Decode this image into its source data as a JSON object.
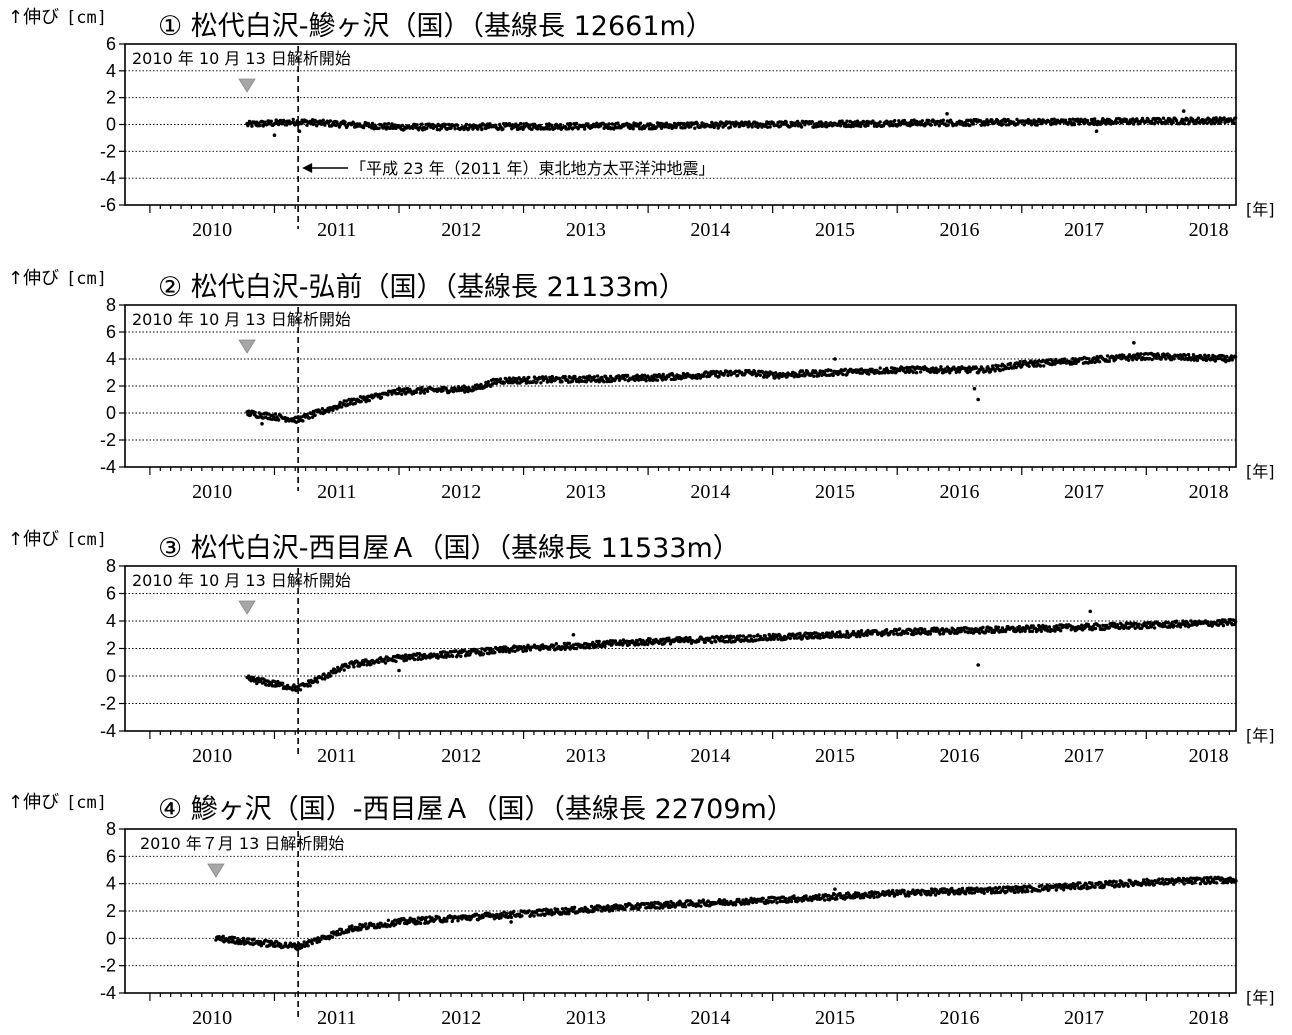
{
  "y_axis_label": "↑伸び",
  "y_axis_unit": "[cm]",
  "x_axis_unit": "[年]",
  "earthquake_note": "「平成 23 年（2011 年）東北地方太平洋沖地震」",
  "colors": {
    "points": "#000000",
    "marker": "#a6a6a6",
    "background": "#ffffff"
  },
  "chart_data": [
    {
      "type": "scatter",
      "title": "① 松代白沢-鰺ヶ沢（国）（基線長 12661m）",
      "start_note": "2010 年 10 月 13 日解析開始",
      "start_marker_x": 2010.78,
      "x_range": [
        2009.8,
        2018.72
      ],
      "ylim": [
        -6,
        6
      ],
      "yticks": [
        -6,
        -4,
        -2,
        0,
        2,
        4,
        6
      ],
      "xticks": [
        "2010",
        "2011",
        "2012",
        "2013",
        "2014",
        "2015",
        "2016",
        "2017",
        "2018"
      ],
      "gridlines": [
        -4,
        -2,
        0,
        2,
        4
      ],
      "earthquake_x": 2011.19,
      "series_start": 2010.78,
      "trend": [
        [
          2010.78,
          0.0
        ],
        [
          2011.19,
          0.2
        ],
        [
          2012.0,
          -0.2
        ],
        [
          2014.0,
          -0.1
        ],
        [
          2016.0,
          0.1
        ],
        [
          2018.72,
          0.3
        ]
      ],
      "outliers": [
        [
          2011.0,
          -0.8
        ],
        [
          2011.2,
          -0.5
        ],
        [
          2016.4,
          0.8
        ],
        [
          2017.6,
          -0.5
        ],
        [
          2018.3,
          1.0
        ]
      ]
    },
    {
      "type": "scatter",
      "title": "② 松代白沢-弘前（国）（基線長 21133m）",
      "start_note": "2010 年 10 月 13 日解析開始",
      "start_marker_x": 2010.78,
      "x_range": [
        2009.8,
        2018.72
      ],
      "ylim": [
        -4,
        8
      ],
      "yticks": [
        -4,
        -2,
        0,
        2,
        4,
        6,
        8
      ],
      "xticks": [
        "2010",
        "2011",
        "2012",
        "2013",
        "2014",
        "2015",
        "2016",
        "2017",
        "2018"
      ],
      "gridlines": [
        -2,
        0,
        2,
        4,
        6
      ],
      "earthquake_x": 2011.19,
      "series_start": 2010.78,
      "trend": [
        [
          2010.78,
          0.0
        ],
        [
          2011.19,
          -0.5
        ],
        [
          2011.6,
          0.8
        ],
        [
          2012.0,
          1.6
        ],
        [
          2012.6,
          1.8
        ],
        [
          2012.8,
          2.4
        ],
        [
          2014.0,
          2.6
        ],
        [
          2014.8,
          3.0
        ],
        [
          2015.0,
          2.8
        ],
        [
          2016.0,
          3.2
        ],
        [
          2016.7,
          3.2
        ],
        [
          2017.0,
          3.6
        ],
        [
          2018.0,
          4.2
        ],
        [
          2018.72,
          4.0
        ]
      ],
      "outliers": [
        [
          2016.65,
          1.0
        ],
        [
          2016.62,
          1.8
        ],
        [
          2010.9,
          -0.8
        ],
        [
          2017.9,
          5.2
        ],
        [
          2015.5,
          4.0
        ]
      ]
    },
    {
      "type": "scatter",
      "title": "③ 松代白沢-西目屋Ａ（国）（基線長 11533m）",
      "start_note": "2010 年 10 月 13 日解析開始",
      "start_marker_x": 2010.78,
      "x_range": [
        2009.8,
        2018.72
      ],
      "ylim": [
        -4,
        8
      ],
      "yticks": [
        -4,
        -2,
        0,
        2,
        4,
        6,
        8
      ],
      "xticks": [
        "2010",
        "2011",
        "2012",
        "2013",
        "2014",
        "2015",
        "2016",
        "2017",
        "2018"
      ],
      "gridlines": [
        -2,
        0,
        2,
        4,
        6
      ],
      "earthquake_x": 2011.19,
      "series_start": 2010.78,
      "trend": [
        [
          2010.78,
          -0.2
        ],
        [
          2011.19,
          -0.9
        ],
        [
          2011.6,
          0.8
        ],
        [
          2012.0,
          1.3
        ],
        [
          2013.0,
          2.0
        ],
        [
          2014.0,
          2.5
        ],
        [
          2015.0,
          2.8
        ],
        [
          2016.0,
          3.2
        ],
        [
          2017.0,
          3.4
        ],
        [
          2018.72,
          3.9
        ]
      ],
      "outliers": [
        [
          2016.65,
          0.8
        ],
        [
          2012.0,
          0.4
        ],
        [
          2017.55,
          4.7
        ],
        [
          2013.4,
          3.0
        ]
      ]
    },
    {
      "type": "scatter",
      "title": "④ 鰺ヶ沢（国）-西目屋Ａ（国）（基線長 22709m）",
      "start_note": "2010 年７月 13 日解析開始",
      "start_marker_x": 2010.53,
      "x_range": [
        2009.8,
        2018.72
      ],
      "ylim": [
        -4,
        8
      ],
      "yticks": [
        -4,
        -2,
        0,
        2,
        4,
        6,
        8
      ],
      "xticks": [
        "2010",
        "2011",
        "2012",
        "2013",
        "2014",
        "2015",
        "2016",
        "2017",
        "2018"
      ],
      "gridlines": [
        -2,
        0,
        2,
        4,
        6
      ],
      "earthquake_x": 2011.19,
      "series_start": 2010.53,
      "trend": [
        [
          2010.53,
          0.0
        ],
        [
          2011.19,
          -0.6
        ],
        [
          2011.6,
          0.7
        ],
        [
          2012.0,
          1.2
        ],
        [
          2013.0,
          1.8
        ],
        [
          2014.0,
          2.4
        ],
        [
          2015.0,
          2.8
        ],
        [
          2016.0,
          3.3
        ],
        [
          2017.0,
          3.6
        ],
        [
          2018.0,
          4.1
        ],
        [
          2018.72,
          4.3
        ]
      ],
      "outliers": [
        [
          2012.9,
          1.2
        ],
        [
          2015.5,
          3.6
        ]
      ]
    }
  ]
}
